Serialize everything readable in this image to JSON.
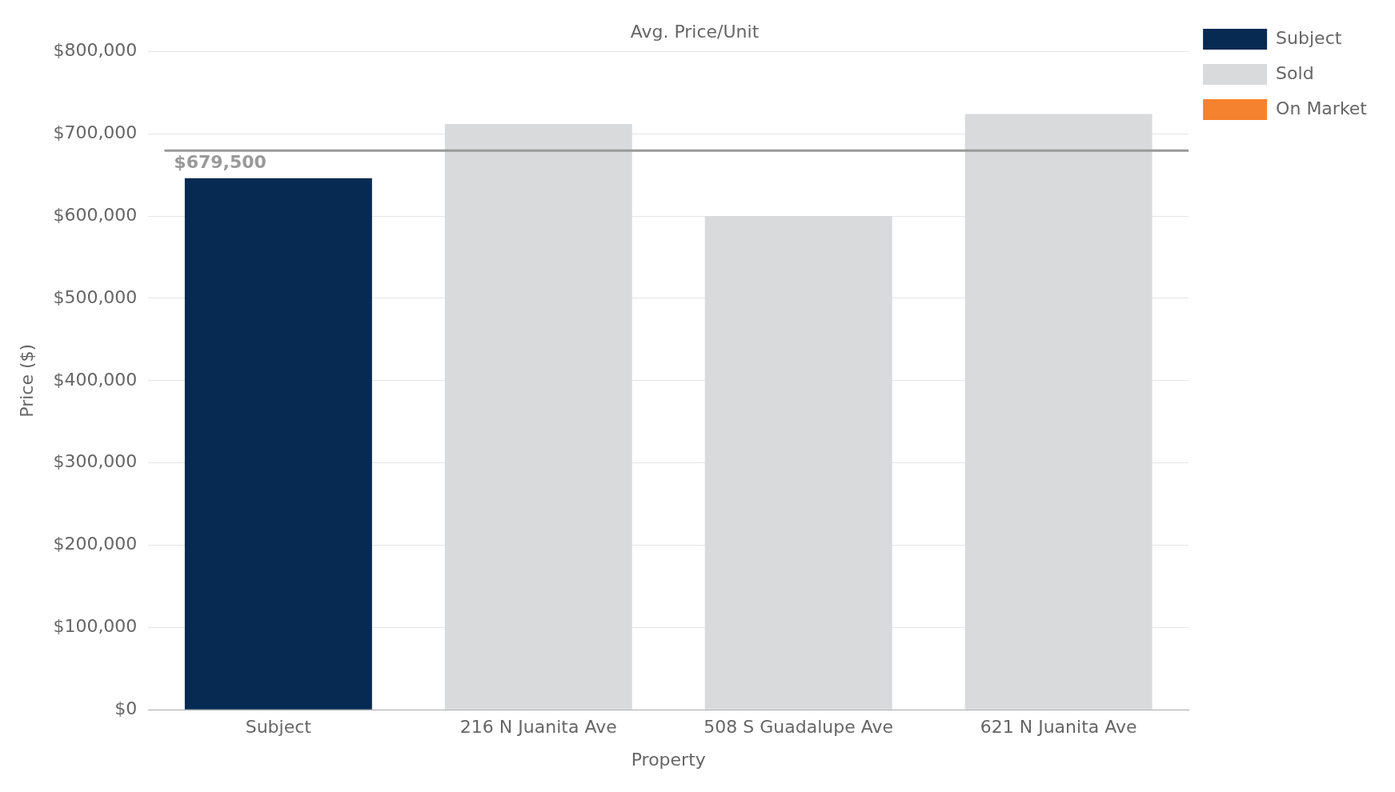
{
  "chart_data": {
    "type": "bar",
    "title": "Avg. Price/Unit",
    "xlabel": "Property",
    "ylabel": "Price ($)",
    "categories": [
      "Subject",
      "216 N Juanita Ave",
      "508 S Guadalupe Ave",
      "621 N Juanita Ave"
    ],
    "series": [
      {
        "name": "Subject",
        "color": "#062a52",
        "values": [
          646000,
          null,
          null,
          null
        ]
      },
      {
        "name": "Sold",
        "color": "#d8dadb",
        "values": [
          null,
          712000,
          600000,
          724000
        ]
      },
      {
        "name": "On Market",
        "color": "#f5822e",
        "values": [
          null,
          null,
          null,
          null
        ]
      }
    ],
    "ylim": [
      0,
      800000
    ],
    "yticks": [
      {
        "value": 0,
        "label": "$0"
      },
      {
        "value": 100000,
        "label": "$100,000"
      },
      {
        "value": 200000,
        "label": "$200,000"
      },
      {
        "value": 300000,
        "label": "$300,000"
      },
      {
        "value": 400000,
        "label": "$400,000"
      },
      {
        "value": 500000,
        "label": "$500,000"
      },
      {
        "value": 600000,
        "label": "$600,000"
      },
      {
        "value": 700000,
        "label": "$700,000"
      },
      {
        "value": 800000,
        "label": "$800,000"
      }
    ],
    "ref_lines": [
      {
        "axis": "y",
        "value": 679500,
        "label": "$679,500",
        "color": "#999999"
      }
    ],
    "grid": "y",
    "legend": "right"
  }
}
